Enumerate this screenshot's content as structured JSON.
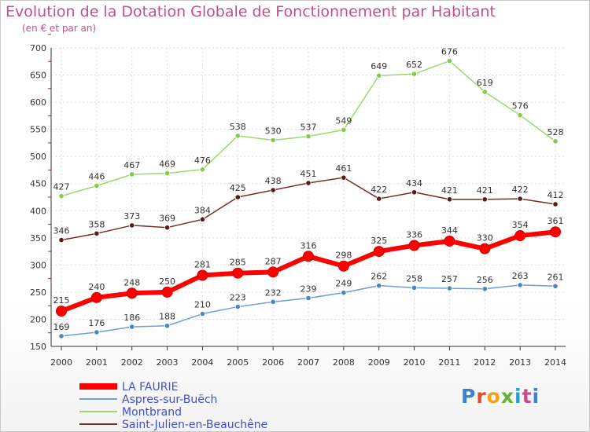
{
  "header": {
    "title": "Evolution de la Dotation Globale de Fonctionnement par Habitant",
    "subtitle": "(en € et par an)"
  },
  "logo": {
    "text": "Proxiti",
    "colors": [
      "#3f7fd0",
      "#e84a2e",
      "#f0a21c",
      "#66b032",
      "#2a9fd6",
      "#c0508a",
      "#3f7fd0"
    ]
  },
  "colors": {
    "title": "#c0508a",
    "axis": "#333333",
    "grid": "#dddddd",
    "tick_marks": "#d42020",
    "legend_text": "#3f4fcf"
  },
  "chart_data": {
    "type": "line",
    "title": "Evolution de la Dotation Globale de Fonctionnement par Habitant",
    "subtitle": "(en € et par an)",
    "xlabel": "",
    "ylabel": "",
    "x": [
      "2000",
      "2001",
      "2002",
      "2003",
      "2004",
      "2005",
      "2006",
      "2007",
      "2008",
      "2009",
      "2010",
      "2011",
      "2012",
      "2013",
      "2014"
    ],
    "ylim": [
      150,
      700
    ],
    "yticks": [
      "150",
      "200",
      "250",
      "300",
      "350",
      "400",
      "450",
      "500",
      "550",
      "600",
      "650",
      "700"
    ],
    "grid": true,
    "legend_position": "bottom-left",
    "series": [
      {
        "name": "LA FAURIE",
        "color": "#ff0000",
        "point_color": "#d61010",
        "highlight": true,
        "values": [
          215,
          240,
          248,
          250,
          281,
          285,
          287,
          316,
          298,
          325,
          336,
          344,
          330,
          354,
          361
        ]
      },
      {
        "name": "Aspres-sur-Buëch",
        "color": "#6aa0d4",
        "point_color": "#4d85c0",
        "highlight": false,
        "values": [
          169,
          176,
          186,
          188,
          210,
          223,
          232,
          239,
          249,
          262,
          258,
          257,
          256,
          263,
          261
        ]
      },
      {
        "name": "Montbrand",
        "color": "#9bd96a",
        "point_color": "#86c850",
        "highlight": false,
        "values": [
          427,
          446,
          467,
          469,
          476,
          538,
          530,
          537,
          549,
          649,
          652,
          676,
          619,
          576,
          528
        ]
      },
      {
        "name": "Saint-Julien-en-Beauchêne",
        "color": "#7a2b2b",
        "point_color": "#5a1a1a",
        "highlight": false,
        "values": [
          346,
          358,
          373,
          369,
          384,
          425,
          438,
          451,
          461,
          422,
          434,
          421,
          421,
          422,
          412
        ]
      }
    ]
  }
}
